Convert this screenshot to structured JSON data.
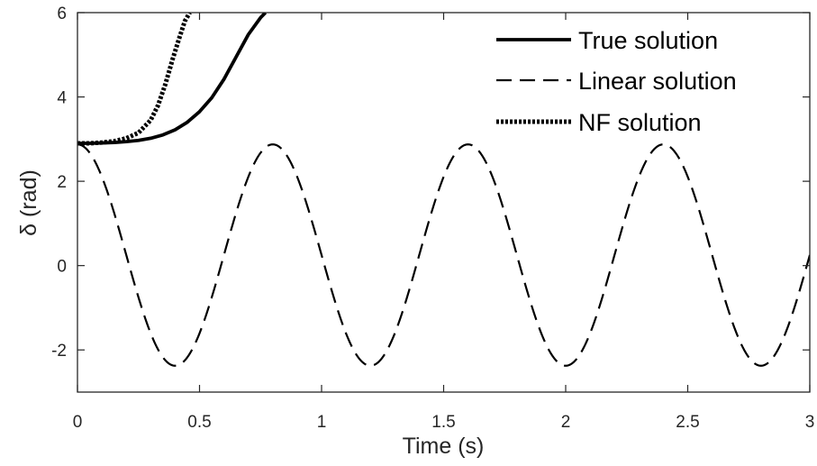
{
  "chart_data": {
    "type": "line",
    "xlabel": "Time (s)",
    "ylabel": "δ (rad)",
    "xlim": [
      0,
      3
    ],
    "ylim": [
      -3,
      6
    ],
    "xticks": [
      0,
      0.5,
      1,
      1.5,
      2,
      2.5,
      3
    ],
    "xtick_labels": [
      "0",
      "0.5",
      "1",
      "1.5",
      "2",
      "2.5",
      "3"
    ],
    "yticks": [
      -2,
      0,
      2,
      4,
      6
    ],
    "ytick_labels": [
      "-2",
      "0",
      "2",
      "4",
      "6"
    ],
    "grid": false,
    "legend_position": "top-right",
    "series": [
      {
        "name": "True solution",
        "style": "solid",
        "color": "#000000",
        "x": [
          0,
          0.05,
          0.1,
          0.15,
          0.2,
          0.25,
          0.3,
          0.35,
          0.4,
          0.45,
          0.5,
          0.55,
          0.6,
          0.65,
          0.7,
          0.75,
          0.77
        ],
        "y": [
          2.9,
          2.9,
          2.91,
          2.92,
          2.94,
          2.97,
          3.02,
          3.1,
          3.22,
          3.4,
          3.65,
          3.98,
          4.42,
          4.95,
          5.48,
          5.88,
          6.0
        ]
      },
      {
        "name": "Linear solution",
        "style": "dashed",
        "color": "#000000",
        "period": 0.8,
        "mean": 0.25,
        "amplitude": 2.625,
        "x_range": [
          0,
          3
        ],
        "y_max": 2.875,
        "y_min": -2.375
      },
      {
        "name": "NF solution",
        "style": "dotted",
        "color": "#000000",
        "x": [
          0,
          0.05,
          0.1,
          0.15,
          0.2,
          0.25,
          0.3,
          0.33,
          0.36,
          0.39,
          0.42,
          0.44,
          0.46
        ],
        "y": [
          2.9,
          2.9,
          2.92,
          2.95,
          3.02,
          3.15,
          3.45,
          3.8,
          4.3,
          4.9,
          5.45,
          5.8,
          6.0
        ]
      }
    ]
  }
}
